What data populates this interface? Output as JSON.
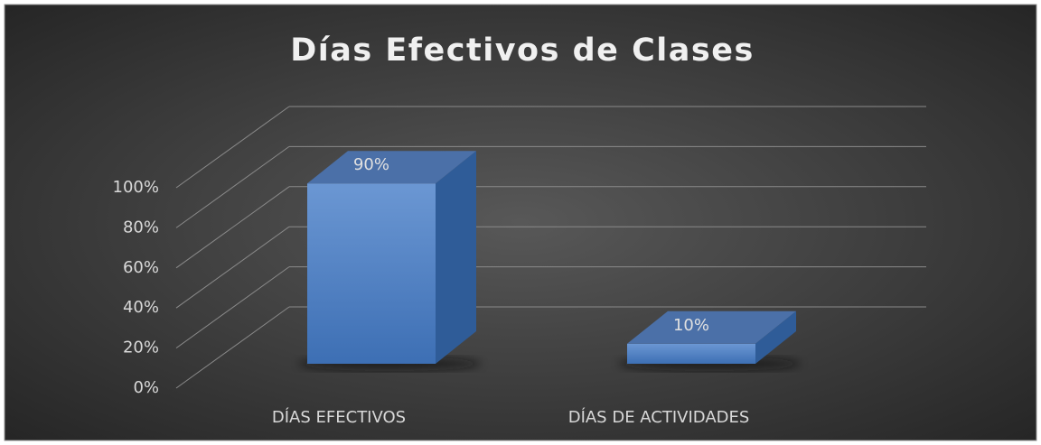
{
  "chart_data": {
    "type": "bar3d",
    "title": "Días Efectivos de Clases",
    "categories": [
      "DÍAS EFECTIVOS",
      "DÍAS DE ACTIVIDADES"
    ],
    "values": [
      90,
      10
    ],
    "value_labels": [
      "90%",
      "10%"
    ],
    "color": "#4a7fc8",
    "ylim": [
      0,
      100
    ],
    "yticks": [
      {
        "value": 0,
        "label": "0%"
      },
      {
        "value": 20,
        "label": "20%"
      },
      {
        "value": 40,
        "label": "40%"
      },
      {
        "value": 60,
        "label": "60%"
      },
      {
        "value": 80,
        "label": "80%"
      },
      {
        "value": 100,
        "label": "100%"
      }
    ],
    "grid": true
  }
}
